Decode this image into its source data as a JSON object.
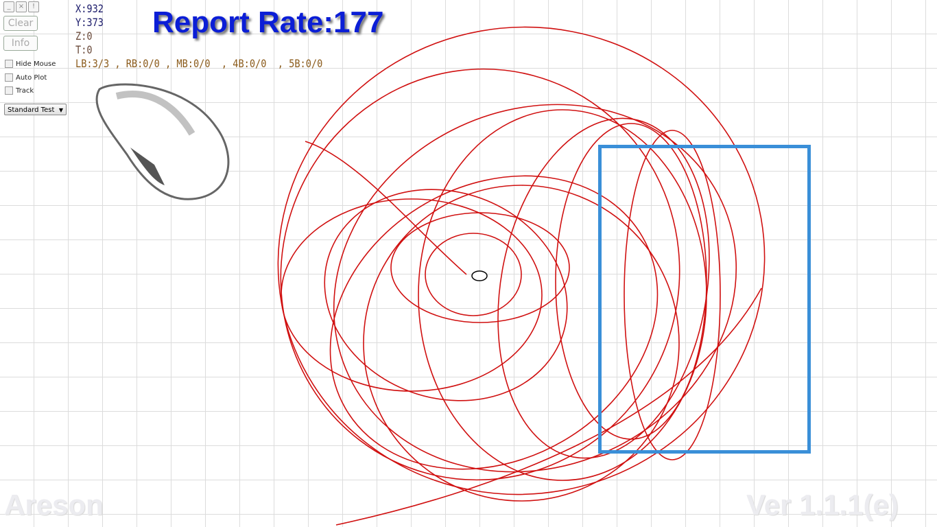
{
  "window_controls": [
    {
      "icon": "minimize-icon",
      "glyph": "_"
    },
    {
      "icon": "close-icon",
      "glyph": "×"
    },
    {
      "icon": "alert-icon",
      "glyph": "!"
    }
  ],
  "buttons": {
    "clear": "Clear",
    "info": "Info"
  },
  "checkboxes": [
    {
      "label": "Hide Mouse",
      "checked": false
    },
    {
      "label": "Auto Plot",
      "checked": false
    },
    {
      "label": "Track",
      "checked": false
    }
  ],
  "mode_select": {
    "value": "Standard Test"
  },
  "readout": {
    "x": "X:932",
    "y": "Y:373",
    "z": "Z:0",
    "t": "T:0",
    "buttons": "LB:3/3 , RB:0/0 , MB:0/0  , 4B:0/0  , 5B:0/0"
  },
  "report_rate": "Report Rate:177",
  "watermark_left": "Areson",
  "watermark_right": "Ver 1.1.1(e)",
  "colors": {
    "trace": "#d01010",
    "rect": "#3a8fd8",
    "title": "#0b1ed6"
  }
}
